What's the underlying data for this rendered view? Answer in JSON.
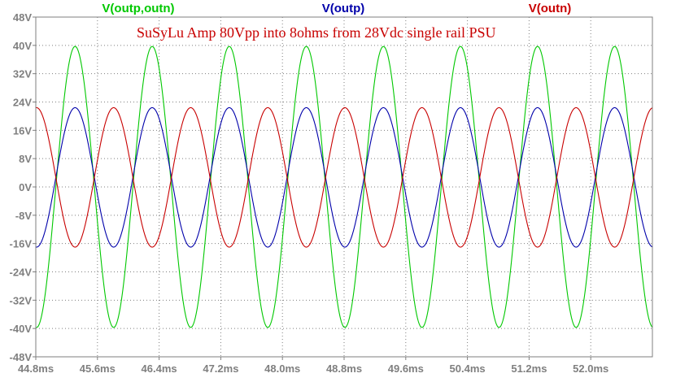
{
  "chart_data": {
    "type": "line",
    "title": "",
    "annotation": "SuSyLu Amp 80Vpp into 8ohms from 28Vdc single rail PSU",
    "xlabel": "",
    "ylabel": "",
    "x_unit": "ms",
    "y_unit": "V",
    "xlim": [
      44.8,
      52.8
    ],
    "ylim": [
      -48,
      48
    ],
    "x_ticks": [
      "44.8ms",
      "45.6ms",
      "46.4ms",
      "47.2ms",
      "48.0ms",
      "48.8ms",
      "49.6ms",
      "50.4ms",
      "51.2ms",
      "52.0ms"
    ],
    "y_ticks": [
      "48V",
      "40V",
      "32V",
      "24V",
      "16V",
      "8V",
      "0V",
      "-8V",
      "-16V",
      "-24V",
      "-32V",
      "-40V",
      "-48V"
    ],
    "grid": true,
    "legend_placement": "top",
    "frequency_hz": 1000,
    "series": [
      {
        "name": "V(outp,outn)",
        "color": "#00c800",
        "waveform": "sine",
        "offset": 0,
        "amplitude": 39.7,
        "peak_times_ms": [
          45.31,
          46.31,
          47.31,
          48.31,
          49.31,
          50.31,
          51.31,
          52.31
        ],
        "peak_value": 39.7,
        "trough_value": -39.7
      },
      {
        "name": "V(outp)",
        "color": "#0000aa",
        "waveform": "sine",
        "offset": 2.7,
        "amplitude": 19.7,
        "peak_times_ms": [
          45.31,
          46.31,
          47.31,
          48.31,
          49.31,
          50.31,
          51.31,
          52.31
        ],
        "peak_value": 22.4,
        "trough_value": -17.0
      },
      {
        "name": "V(outn)",
        "color": "#c80000",
        "waveform": "sine",
        "offset": 2.7,
        "amplitude": 19.7,
        "peak_times_ms": [
          44.81,
          45.81,
          46.81,
          47.81,
          48.81,
          49.81,
          50.81,
          51.81
        ],
        "peak_value": 22.4,
        "trough_value": -17.0
      }
    ]
  }
}
